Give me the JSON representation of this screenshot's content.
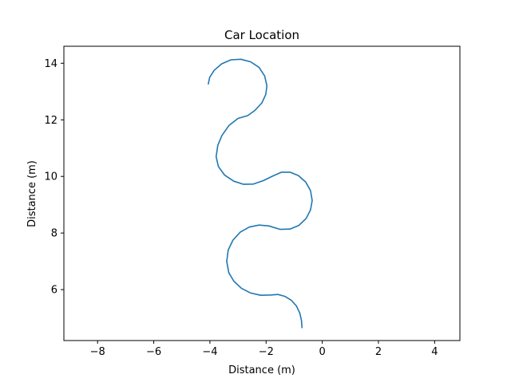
{
  "chart_data": {
    "type": "line",
    "title": "Car Location",
    "xlabel": "Distance (m)",
    "ylabel": "Distance (m)",
    "xlim": [
      -9.2,
      4.9
    ],
    "ylim": [
      4.2,
      14.6
    ],
    "xticks": [
      -8,
      -6,
      -4,
      -2,
      0,
      2,
      4
    ],
    "yticks": [
      6,
      8,
      10,
      12,
      14
    ],
    "xtick_labels": [
      "−8",
      "−6",
      "−4",
      "−2",
      "0",
      "2",
      "4"
    ],
    "ytick_labels": [
      "6",
      "8",
      "10",
      "12",
      "14"
    ],
    "grid": false,
    "series": [
      {
        "color": "#1f77b4",
        "points": [
          [
            -0.72,
            4.64
          ],
          [
            -0.74,
            4.9
          ],
          [
            -0.8,
            5.17
          ],
          [
            -0.92,
            5.42
          ],
          [
            -1.1,
            5.62
          ],
          [
            -1.33,
            5.76
          ],
          [
            -1.58,
            5.83
          ],
          [
            -1.85,
            5.81
          ],
          [
            -2.2,
            5.8
          ],
          [
            -2.55,
            5.88
          ],
          [
            -2.88,
            6.05
          ],
          [
            -3.15,
            6.3
          ],
          [
            -3.33,
            6.6
          ],
          [
            -3.4,
            7.0
          ],
          [
            -3.35,
            7.4
          ],
          [
            -3.18,
            7.75
          ],
          [
            -2.92,
            8.03
          ],
          [
            -2.6,
            8.21
          ],
          [
            -2.25,
            8.28
          ],
          [
            -1.9,
            8.25
          ],
          [
            -1.5,
            8.13
          ],
          [
            -1.15,
            8.14
          ],
          [
            -0.83,
            8.27
          ],
          [
            -0.57,
            8.52
          ],
          [
            -0.42,
            8.82
          ],
          [
            -0.36,
            9.15
          ],
          [
            -0.42,
            9.5
          ],
          [
            -0.59,
            9.8
          ],
          [
            -0.85,
            10.03
          ],
          [
            -1.15,
            10.15
          ],
          [
            -1.45,
            10.15
          ],
          [
            -1.75,
            10.02
          ],
          [
            -2.1,
            9.85
          ],
          [
            -2.45,
            9.73
          ],
          [
            -2.8,
            9.72
          ],
          [
            -3.15,
            9.83
          ],
          [
            -3.48,
            10.05
          ],
          [
            -3.7,
            10.35
          ],
          [
            -3.78,
            10.7
          ],
          [
            -3.72,
            11.1
          ],
          [
            -3.57,
            11.45
          ],
          [
            -3.32,
            11.8
          ],
          [
            -3.0,
            12.05
          ],
          [
            -2.65,
            12.15
          ],
          [
            -2.4,
            12.33
          ],
          [
            -2.15,
            12.6
          ],
          [
            -2.01,
            12.9
          ],
          [
            -1.97,
            13.2
          ],
          [
            -2.05,
            13.55
          ],
          [
            -2.25,
            13.85
          ],
          [
            -2.55,
            14.05
          ],
          [
            -2.9,
            14.14
          ],
          [
            -3.25,
            14.12
          ],
          [
            -3.58,
            13.98
          ],
          [
            -3.85,
            13.75
          ],
          [
            -4.01,
            13.5
          ],
          [
            -4.06,
            13.25
          ]
        ]
      }
    ]
  }
}
